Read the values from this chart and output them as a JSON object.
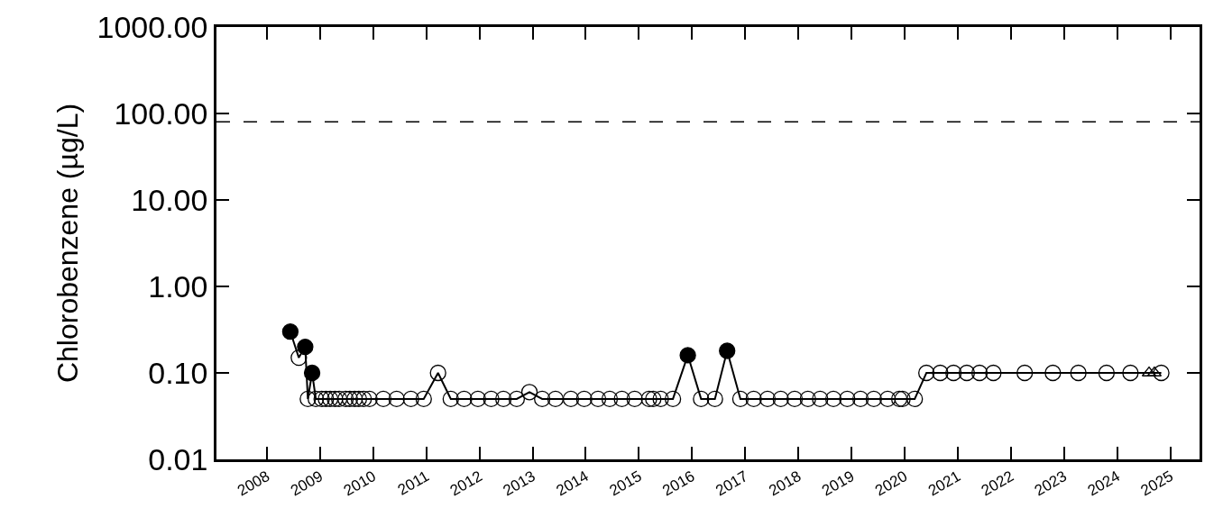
{
  "chart_data": {
    "type": "line",
    "ylabel": "Chlorobenzene (µg/L)",
    "log": "y",
    "xlim": [
      2007.05,
      2025.55
    ],
    "xticks": [
      2008,
      2009,
      2010,
      2011,
      2012,
      2013,
      2014,
      2015,
      2016,
      2017,
      2018,
      2019,
      2020,
      2021,
      2022,
      2023,
      2024,
      2025
    ],
    "ylim": [
      0.01,
      1000
    ],
    "yticks": [
      {
        "value": 0.01,
        "label": "0.01"
      },
      {
        "value": 0.1,
        "label": "0.10"
      },
      {
        "value": 1,
        "label": "1.00"
      },
      {
        "value": 10,
        "label": "10.00"
      },
      {
        "value": 100,
        "label": "100.00"
      },
      {
        "value": 1000,
        "label": "1000.00"
      }
    ],
    "ref_lines": [
      {
        "axis": "y",
        "value": 80,
        "color": "#000000",
        "line_style": "dashed"
      }
    ],
    "series": [
      {
        "color": "#000000",
        "marker": "none",
        "line_style": "solid",
        "x": [
          2008.44,
          2008.6,
          2008.72,
          2008.77,
          2008.85,
          2008.92,
          2009.03,
          2009.11,
          2009.19,
          2009.28,
          2009.36,
          2009.48,
          2009.56,
          2009.65,
          2009.73,
          2009.82,
          2009.93,
          2010.19,
          2010.44,
          2010.71,
          2010.95,
          2011.22,
          2011.46,
          2011.71,
          2011.97,
          2012.22,
          2012.45,
          2012.7,
          2012.94,
          2013.18,
          2013.43,
          2013.72,
          2013.97,
          2014.23,
          2014.45,
          2014.68,
          2014.92,
          2015.19,
          2015.27,
          2015.41,
          2015.64,
          2015.92,
          2016.17,
          2016.43,
          2016.66,
          2016.91,
          2017.16,
          2017.42,
          2017.67,
          2017.93,
          2018.18,
          2018.41,
          2018.66,
          2018.92,
          2019.17,
          2019.42,
          2019.68,
          2019.9,
          2019.96,
          2020.19,
          2020.41,
          2020.67,
          2020.92,
          2021.17,
          2021.41,
          2021.67,
          2022.26,
          2022.79,
          2023.27,
          2023.8,
          2024.25,
          2024.62,
          2024.71,
          2024.83
        ],
        "values": [
          0.3,
          0.15,
          0.2,
          0.05,
          0.1,
          0.05,
          0.05,
          0.05,
          0.05,
          0.05,
          0.05,
          0.05,
          0.05,
          0.05,
          0.05,
          0.05,
          0.05,
          0.05,
          0.05,
          0.05,
          0.05,
          0.1,
          0.05,
          0.05,
          0.05,
          0.05,
          0.05,
          0.05,
          0.06,
          0.05,
          0.05,
          0.05,
          0.05,
          0.05,
          0.05,
          0.05,
          0.05,
          0.05,
          0.05,
          0.05,
          0.05,
          0.16,
          0.05,
          0.05,
          0.18,
          0.05,
          0.05,
          0.05,
          0.05,
          0.05,
          0.05,
          0.05,
          0.05,
          0.05,
          0.05,
          0.05,
          0.05,
          0.05,
          0.05,
          0.05,
          0.1,
          0.1,
          0.1,
          0.1,
          0.1,
          0.1,
          0.1,
          0.1,
          0.1,
          0.1,
          0.1,
          0.1,
          0.1,
          0.1
        ]
      },
      {
        "type": "scatter",
        "color": "#000000",
        "marker": "circle-open",
        "x": [
          2008.6,
          2008.77,
          2008.92,
          2009.03,
          2009.11,
          2009.19,
          2009.28,
          2009.36,
          2009.48,
          2009.56,
          2009.65,
          2009.73,
          2009.82,
          2009.93,
          2010.19,
          2010.44,
          2010.71,
          2010.95,
          2011.22,
          2011.46,
          2011.71,
          2011.97,
          2012.22,
          2012.45,
          2012.7,
          2012.94,
          2013.18,
          2013.43,
          2013.72,
          2013.97,
          2014.23,
          2014.45,
          2014.68,
          2014.92,
          2015.19,
          2015.27,
          2015.41,
          2015.64,
          2016.17,
          2016.43,
          2016.91,
          2017.16,
          2017.42,
          2017.67,
          2017.93,
          2018.18,
          2018.41,
          2018.66,
          2018.92,
          2019.17,
          2019.42,
          2019.68,
          2019.9,
          2019.96,
          2020.19,
          2020.41,
          2020.67,
          2020.92,
          2021.17,
          2021.41,
          2021.67,
          2022.26,
          2022.79,
          2023.27,
          2023.8,
          2024.25,
          2024.83
        ],
        "values": [
          0.15,
          0.05,
          0.05,
          0.05,
          0.05,
          0.05,
          0.05,
          0.05,
          0.05,
          0.05,
          0.05,
          0.05,
          0.05,
          0.05,
          0.05,
          0.05,
          0.05,
          0.05,
          0.1,
          0.05,
          0.05,
          0.05,
          0.05,
          0.05,
          0.05,
          0.06,
          0.05,
          0.05,
          0.05,
          0.05,
          0.05,
          0.05,
          0.05,
          0.05,
          0.05,
          0.05,
          0.05,
          0.05,
          0.05,
          0.05,
          0.05,
          0.05,
          0.05,
          0.05,
          0.05,
          0.05,
          0.05,
          0.05,
          0.05,
          0.05,
          0.05,
          0.05,
          0.05,
          0.05,
          0.05,
          0.1,
          0.1,
          0.1,
          0.1,
          0.1,
          0.1,
          0.1,
          0.1,
          0.1,
          0.1,
          0.1,
          0.1
        ]
      },
      {
        "type": "scatter",
        "color": "#000000",
        "marker": "circle",
        "x": [
          2008.44,
          2008.72,
          2008.85,
          2015.92,
          2016.66
        ],
        "values": [
          0.3,
          0.2,
          0.1,
          0.16,
          0.18
        ]
      },
      {
        "type": "scatter",
        "color": "#000000",
        "marker": "triangle-open",
        "x": [
          2024.6,
          2024.7
        ],
        "values": [
          0.1,
          0.1
        ]
      }
    ]
  }
}
